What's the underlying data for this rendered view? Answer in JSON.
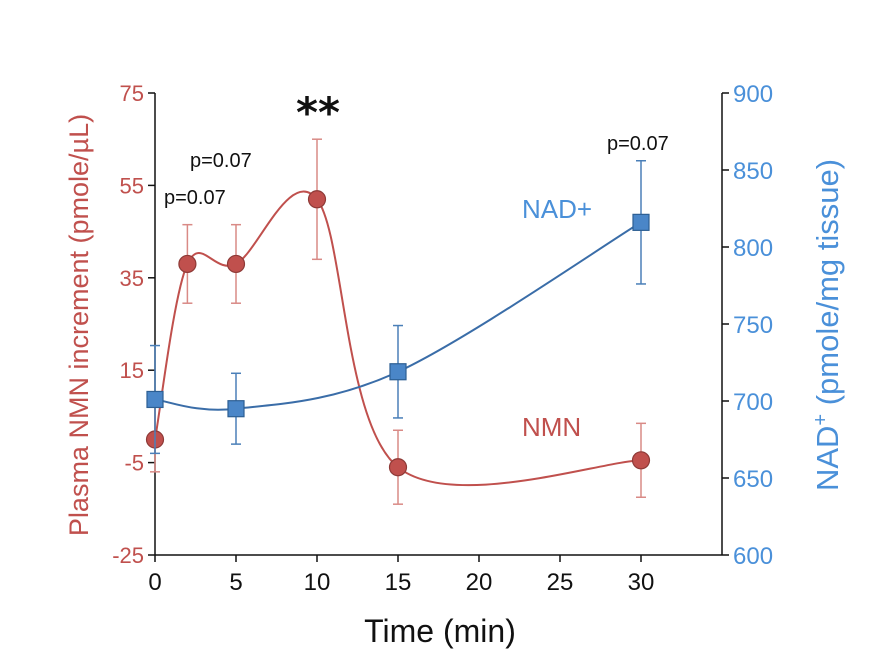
{
  "chart_data": {
    "type": "line",
    "x_ticks": [
      0,
      5,
      10,
      15,
      20,
      25,
      30
    ],
    "xlabel": "Time (min)",
    "xlim": [
      0,
      35
    ],
    "y_left": {
      "label": "Plasma NMN increment (pmole/µL)",
      "ticks": [
        75,
        55,
        35,
        15,
        -5,
        -25
      ],
      "ylim": [
        -25,
        75
      ],
      "color": "#c0504d"
    },
    "y_right": {
      "label_main": "NAD",
      "label_sup": "+",
      "label_rest": " (pmole/mg tissue)",
      "ticks": [
        900,
        850,
        800,
        750,
        700,
        650,
        600
      ],
      "ylim": [
        600,
        900
      ],
      "color": "#4a90d9"
    },
    "series": [
      {
        "name": "NMN",
        "axis": "left",
        "color": "#c0504d",
        "x": [
          0,
          2,
          5,
          10,
          15,
          30
        ],
        "values": [
          0,
          38,
          38,
          52,
          -6,
          -4.5
        ],
        "err": [
          7,
          8.5,
          8.5,
          13,
          8,
          8
        ]
      },
      {
        "name": "NAD+",
        "axis": "right",
        "color": "#3a6da8",
        "x": [
          0,
          5,
          15,
          30
        ],
        "values": [
          701,
          695,
          719,
          816
        ],
        "err": [
          35,
          23,
          30,
          40
        ]
      }
    ],
    "annotations": {
      "p_2min": "p=0.07",
      "p_5min": "p=0.07",
      "sig_10min": "**",
      "p_30min": "p=0.07"
    },
    "legend": {
      "nad": "NAD+",
      "nmn": "NMN"
    }
  }
}
